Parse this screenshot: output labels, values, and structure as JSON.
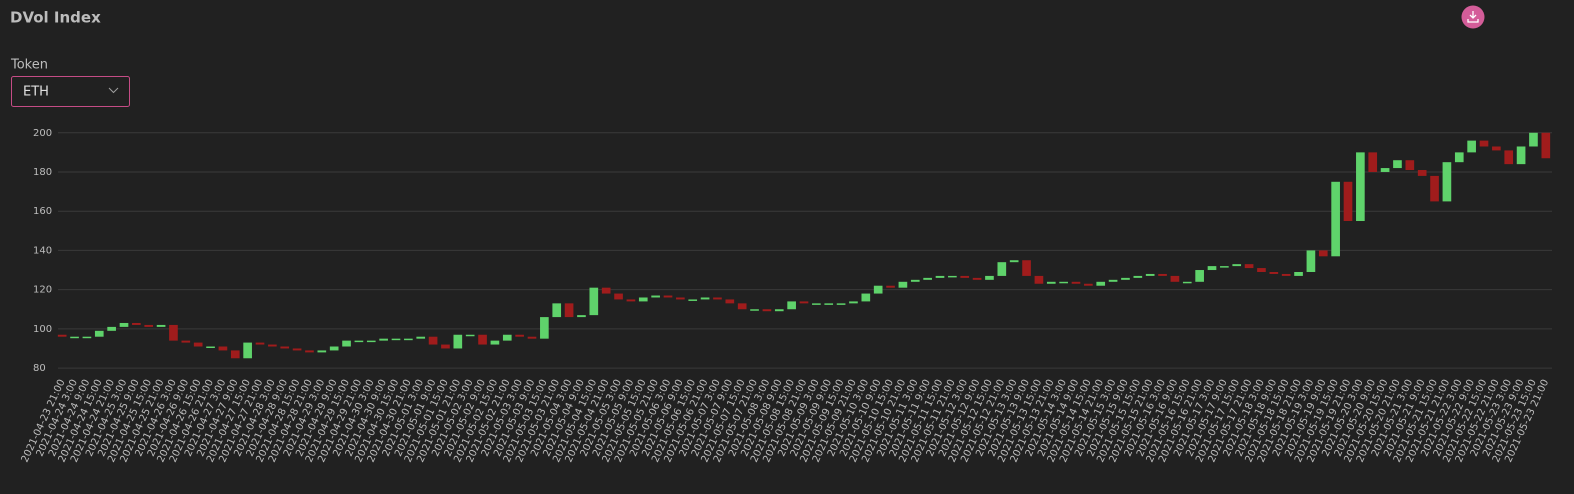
{
  "controls": {
    "label": "Token",
    "value": "ETH"
  },
  "chart_data": {
    "type": "candlestick",
    "title": "DVol Index",
    "categories": [
      "2021-04-23 21:00",
      "2021-04-24 3:00",
      "2021-04-24 9:00",
      "2021-04-24 15:00",
      "2021-04-24 21:00",
      "2021-04-25 3:00",
      "2021-04-25 9:00",
      "2021-04-25 15:00",
      "2021-04-25 21:00",
      "2021-04-26 3:00",
      "2021-04-26 9:00",
      "2021-04-26 15:00",
      "2021-04-26 21:00",
      "2021-04-27 3:00",
      "2021-04-27 9:00",
      "2021-04-27 15:00",
      "2021-04-27 21:00",
      "2021-04-28 3:00",
      "2021-04-28 9:00",
      "2021-04-28 15:00",
      "2021-04-28 21:00",
      "2021-04-29 3:00",
      "2021-04-29 9:00",
      "2021-04-29 15:00",
      "2021-04-29 21:00",
      "2021-04-30 3:00",
      "2021-04-30 9:00",
      "2021-04-30 15:00",
      "2021-04-30 21:00",
      "2021-05-01 3:00",
      "2021-05-01 9:00",
      "2021-05-01 15:00",
      "2021-05-01 21:00",
      "2021-05-02 3:00",
      "2021-05-02 9:00",
      "2021-05-02 15:00",
      "2021-05-02 21:00",
      "2021-05-03 3:00",
      "2021-05-03 9:00",
      "2021-05-03 15:00",
      "2021-05-03 21:00",
      "2021-05-04 3:00",
      "2021-05-04 9:00",
      "2021-05-04 15:00",
      "2021-05-04 21:00",
      "2021-05-05 3:00",
      "2021-05-05 9:00",
      "2021-05-05 15:00",
      "2021-05-05 21:00",
      "2021-05-06 3:00",
      "2021-05-06 9:00",
      "2021-05-06 15:00",
      "2021-05-06 21:00",
      "2021-05-07 3:00",
      "2021-05-07 9:00",
      "2021-05-07 15:00",
      "2021-05-07 21:00",
      "2021-05-08 3:00",
      "2021-05-08 9:00",
      "2021-05-08 15:00",
      "2021-05-08 21:00",
      "2021-05-09 3:00",
      "2021-05-09 9:00",
      "2021-05-09 15:00",
      "2021-05-09 21:00",
      "2021-05-10 3:00",
      "2021-05-10 9:00",
      "2021-05-10 15:00",
      "2021-05-10 21:00",
      "2021-05-11 3:00",
      "2021-05-11 9:00",
      "2021-05-11 15:00",
      "2021-05-11 21:00",
      "2021-05-12 3:00",
      "2021-05-12 9:00",
      "2021-05-12 15:00",
      "2021-05-12 21:00",
      "2021-05-13 3:00",
      "2021-05-13 9:00",
      "2021-05-13 15:00",
      "2021-05-13 21:00",
      "2021-05-14 3:00",
      "2021-05-14 9:00",
      "2021-05-14 15:00",
      "2021-05-14 21:00",
      "2021-05-15 3:00",
      "2021-05-15 9:00",
      "2021-05-15 15:00",
      "2021-05-15 21:00",
      "2021-05-16 3:00",
      "2021-05-16 9:00",
      "2021-05-16 15:00",
      "2021-05-16 21:00",
      "2021-05-17 3:00",
      "2021-05-17 9:00",
      "2021-05-17 15:00",
      "2021-05-17 21:00",
      "2021-05-18 3:00",
      "2021-05-18 9:00",
      "2021-05-18 15:00",
      "2021-05-18 21:00",
      "2021-05-19 3:00",
      "2021-05-19 9:00",
      "2021-05-19 15:00",
      "2021-05-19 21:00",
      "2021-05-20 3:00",
      "2021-05-20 9:00",
      "2021-05-20 15:00",
      "2021-05-20 21:00",
      "2021-05-21 3:00",
      "2021-05-21 9:00",
      "2021-05-21 15:00",
      "2021-05-21 21:00",
      "2021-05-22 3:00",
      "2021-05-22 9:00",
      "2021-05-22 15:00",
      "2021-05-22 21:00",
      "2021-05-23 3:00",
      "2021-05-23 9:00",
      "2021-05-23 15:00",
      "2021-05-23 21:00"
    ],
    "open": [
      97,
      96,
      96,
      96,
      99,
      101,
      103,
      102,
      101,
      102,
      94,
      93,
      91,
      91,
      89,
      85,
      93,
      92,
      91,
      90,
      89,
      88,
      89,
      91,
      94,
      94,
      94,
      95,
      95,
      95,
      96,
      92,
      90,
      97,
      97,
      92,
      94,
      97,
      96,
      95,
      106,
      113,
      106,
      107,
      121,
      118,
      115,
      114,
      116,
      117,
      116,
      115,
      115,
      116,
      115,
      113,
      110,
      110,
      109,
      110,
      114,
      113,
      113,
      113,
      113,
      114,
      118,
      122,
      121,
      124,
      125,
      126,
      127,
      127,
      126,
      125,
      127,
      134,
      135,
      127,
      123,
      124,
      124,
      123,
      122,
      124,
      125,
      126,
      127,
      128,
      127,
      124,
      124,
      130,
      132,
      132,
      133,
      131,
      129,
      128,
      127,
      129,
      140,
      137,
      175,
      155,
      190,
      180,
      182,
      186,
      181,
      178,
      165,
      185,
      190,
      196,
      193,
      191,
      184,
      193,
      200
    ],
    "close": [
      96,
      96,
      96,
      99,
      101,
      103,
      102,
      101,
      102,
      94,
      93,
      91,
      91,
      89,
      85,
      93,
      92,
      91,
      90,
      89,
      88,
      89,
      91,
      94,
      94,
      94,
      95,
      95,
      95,
      96,
      92,
      90,
      97,
      97,
      92,
      94,
      97,
      96,
      95,
      106,
      113,
      106,
      107,
      121,
      118,
      115,
      114,
      116,
      117,
      116,
      115,
      115,
      116,
      115,
      113,
      110,
      110,
      109,
      110,
      114,
      113,
      113,
      113,
      113,
      114,
      118,
      122,
      121,
      124,
      125,
      126,
      127,
      127,
      126,
      125,
      127,
      134,
      135,
      127,
      123,
      124,
      124,
      123,
      122,
      124,
      125,
      126,
      127,
      128,
      127,
      124,
      124,
      130,
      132,
      132,
      133,
      131,
      129,
      128,
      127,
      129,
      140,
      137,
      175,
      155,
      190,
      180,
      182,
      186,
      181,
      178,
      165,
      185,
      190,
      196,
      193,
      191,
      184,
      193,
      200,
      187
    ],
    "up_color": "#5fd36b",
    "down_color": "#a01c1c",
    "ylim": [
      78,
      206
    ],
    "yticks": [
      80,
      100,
      120,
      140,
      160,
      180,
      200
    ],
    "grid": true
  }
}
